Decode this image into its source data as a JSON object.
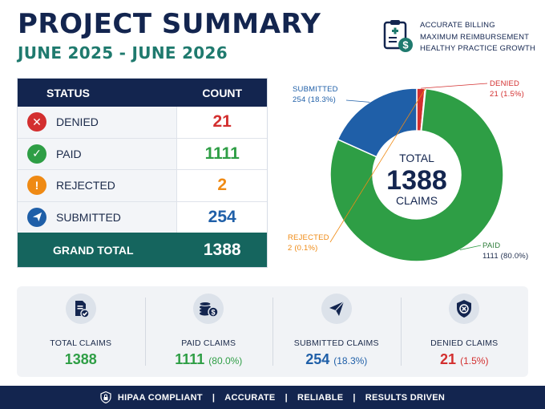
{
  "header": {
    "title": "PROJECT SUMMARY",
    "subtitle": "JUNE 2025 - JUNE 2026"
  },
  "badge": {
    "line1": "ACCURATE BILLING",
    "line2": "MAXIMUM REIMBURSEMENT",
    "line3": "HEALTHY PRACTICE GROWTH",
    "icon": "billing-clipboard-icon"
  },
  "table": {
    "col_status": "STATUS",
    "col_count": "COUNT",
    "rows": [
      {
        "label": "DENIED",
        "count": "21",
        "color": "#d32f2f",
        "icon": "x-circle-icon"
      },
      {
        "label": "PAID",
        "count": "1111",
        "color": "#2e9e45",
        "icon": "check-circle-icon"
      },
      {
        "label": "REJECTED",
        "count": "2",
        "color": "#ef8a14",
        "icon": "exclamation-circle-icon"
      },
      {
        "label": "SUBMITTED",
        "count": "254",
        "color": "#1f5fa8",
        "icon": "send-circle-icon"
      }
    ],
    "total_label": "GRAND TOTAL",
    "total_value": "1388"
  },
  "chart_data": {
    "type": "pie",
    "categories": [
      "DENIED",
      "REJECTED",
      "PAID",
      "SUBMITTED"
    ],
    "values": [
      21,
      2,
      1111,
      254
    ],
    "percent_labels": [
      "21 (1.5%)",
      "2 (0.1%)",
      "1111 (80.0%)",
      "254 (18.3%)"
    ],
    "colors": [
      "#d32f2f",
      "#ef8a14",
      "#2e9e45",
      "#1f5fa8"
    ],
    "center_top": "TOTAL",
    "center_value": "1388",
    "center_bottom": "CLAIMS",
    "donut": true
  },
  "stats": [
    {
      "label": "TOTAL CLAIMS",
      "value": "1388",
      "pct": "",
      "color": "#2e9e45",
      "icon": "document-check-icon"
    },
    {
      "label": "PAID CLAIMS",
      "value": "1111",
      "pct": "(80.0%)",
      "color": "#2e9e45",
      "icon": "coins-dollar-icon"
    },
    {
      "label": "SUBMITTED CLAIMS",
      "value": "254",
      "pct": "(18.3%)",
      "color": "#1f5fa8",
      "icon": "paper-plane-icon"
    },
    {
      "label": "DENIED CLAIMS",
      "value": "21",
      "pct": "(1.5%)",
      "color": "#d32f2f",
      "icon": "shield-x-icon"
    }
  ],
  "footer": {
    "items": [
      "HIPAA COMPLIANT",
      "ACCURATE",
      "RELIABLE",
      "RESULTS DRIVEN"
    ],
    "icon": "shield-lock-icon"
  }
}
